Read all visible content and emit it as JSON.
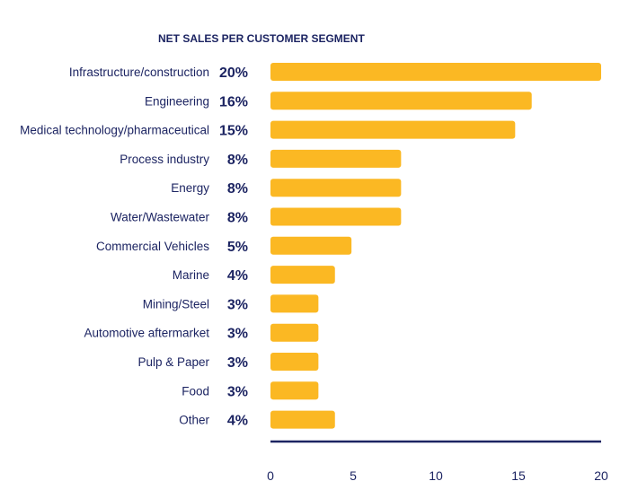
{
  "chart_data": {
    "type": "bar",
    "orientation": "horizontal",
    "title": "NET SALES PER CUSTOMER SEGMENT",
    "categories": [
      "Infrastructure/construction",
      "Engineering",
      "Medical technology/pharmaceutical",
      "Process industry",
      "Energy",
      "Water/Wastewater",
      "Commercial Vehicles",
      "Marine",
      "Mining/Steel",
      "Automotive aftermarket",
      "Pulp & Paper",
      "Food",
      "Other"
    ],
    "values": [
      20,
      15.8,
      14.8,
      7.9,
      7.9,
      7.9,
      4.9,
      3.9,
      2.9,
      2.9,
      2.9,
      2.9,
      3.9
    ],
    "labels": [
      "20%",
      "16%",
      "15%",
      "8%",
      "8%",
      "8%",
      "5%",
      "4%",
      "3%",
      "3%",
      "3%",
      "3%",
      "4%"
    ],
    "xlim": [
      0,
      20
    ],
    "xticks": [
      "0",
      "5",
      "10",
      "15",
      "20"
    ],
    "grid": false,
    "legend": "none",
    "colors": {
      "bar": "#fbb823",
      "text": "#1c2462",
      "axis": "#1c2462"
    }
  }
}
